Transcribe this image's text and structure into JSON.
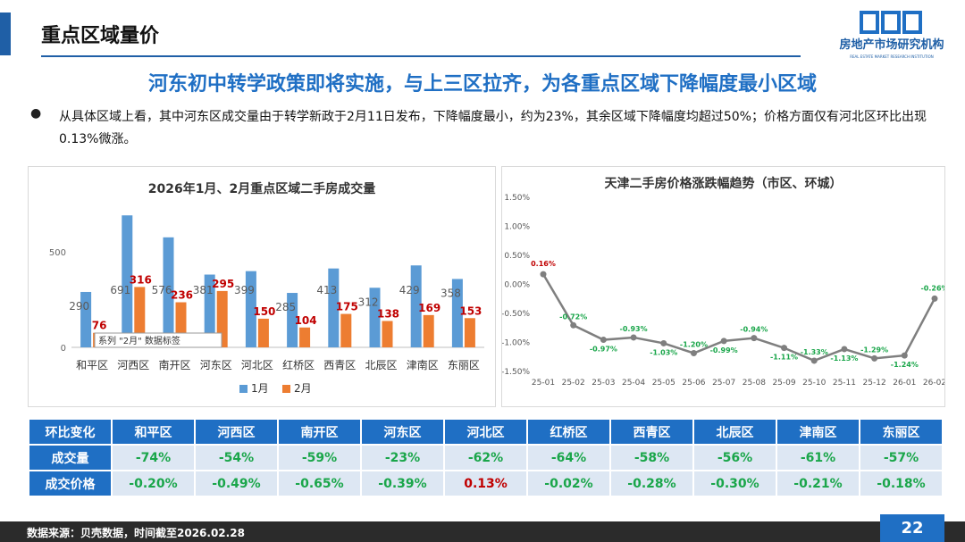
{
  "header": {
    "title": "重点区域量价",
    "logo_text": "房地产市场研究机构",
    "logo_sub": "REAL ESTATE MARKET RESEARCH INSTITUTION"
  },
  "headline": "河东初中转学政策即将实施，与上三区拉齐，为各重点区域下降幅度最小区域",
  "summary": "从具体区域上看，其中河东区成交量由于转学新政于2月11日发布，下降幅度最小，约为23%，其余区域下降幅度均超过50%；价格方面仅有河北区环比出现0.13%微涨。",
  "chart_data": [
    {
      "type": "bar",
      "title": "2026年1月、2月重点区域二手房成交量",
      "categories": [
        "和平区",
        "河西区",
        "南开区",
        "河东区",
        "河北区",
        "红桥区",
        "西青区",
        "北辰区",
        "津南区",
        "东丽区"
      ],
      "series": [
        {
          "name": "1月",
          "values": [
            290,
            691,
            576,
            381,
            399,
            285,
            413,
            312,
            429,
            358
          ],
          "color": "#5b9bd5"
        },
        {
          "name": "2月",
          "values": [
            76,
            316,
            236,
            295,
            150,
            104,
            175,
            138,
            169,
            153
          ],
          "color": "#ed7d31"
        }
      ],
      "yticks": [
        0,
        500
      ],
      "ylim": [
        0,
        720
      ],
      "legend": "bottom",
      "tooltip": "系列 \"2月\" 数据标签"
    },
    {
      "type": "line",
      "title": "天津二手房价格涨跌幅趋势（市区、环城）",
      "x": [
        "25-01",
        "25-02",
        "25-03",
        "25-04",
        "25-05",
        "25-06",
        "25-07",
        "25-08",
        "25-09",
        "25-10",
        "25-11",
        "25-12",
        "26-01",
        "26-02"
      ],
      "values": [
        0.16,
        -0.72,
        -0.97,
        -0.93,
        -1.03,
        -1.2,
        -0.99,
        -0.94,
        -1.11,
        -1.33,
        -1.13,
        -1.29,
        -1.24,
        -0.26
      ],
      "labels": [
        "0.16%",
        "-0.72%",
        "-0.97%",
        "-0.93%",
        "-1.03%",
        "-1.20%",
        "-0.99%",
        "-0.94%",
        "-1.11%",
        "-1.33%",
        "-1.13%",
        "-1.29%",
        "-1.24%",
        "-0.26%"
      ],
      "yticks": [
        "1.50%",
        "1.00%",
        "0.50%",
        "0.00%",
        "-0.50%",
        "-1.00%",
        "-1.50%"
      ],
      "ytick_values": [
        1.5,
        1.0,
        0.5,
        0.0,
        -0.5,
        -1.0,
        -1.5
      ],
      "ylim": [
        -1.5,
        1.5
      ],
      "line_color": "#7f7f7f",
      "positive_label_color": "#c00000",
      "negative_label_color": "#1aa64a"
    }
  ],
  "table": {
    "header": [
      "环比变化",
      "和平区",
      "河西区",
      "南开区",
      "河东区",
      "河北区",
      "红桥区",
      "西青区",
      "北辰区",
      "津南区",
      "东丽区"
    ],
    "rows": [
      {
        "label": "成交量",
        "values": [
          "-74%",
          "-54%",
          "-59%",
          "-23%",
          "-62%",
          "-64%",
          "-58%",
          "-56%",
          "-61%",
          "-57%"
        ]
      },
      {
        "label": "成交价格",
        "values": [
          "-0.20%",
          "-0.49%",
          "-0.65%",
          "-0.39%",
          "0.13%",
          "-0.02%",
          "-0.28%",
          "-0.30%",
          "-0.21%",
          "-0.18%"
        ]
      }
    ]
  },
  "footer": {
    "source": "数据来源：贝壳数据，时间截至2026.02.28",
    "page_number": "22"
  }
}
